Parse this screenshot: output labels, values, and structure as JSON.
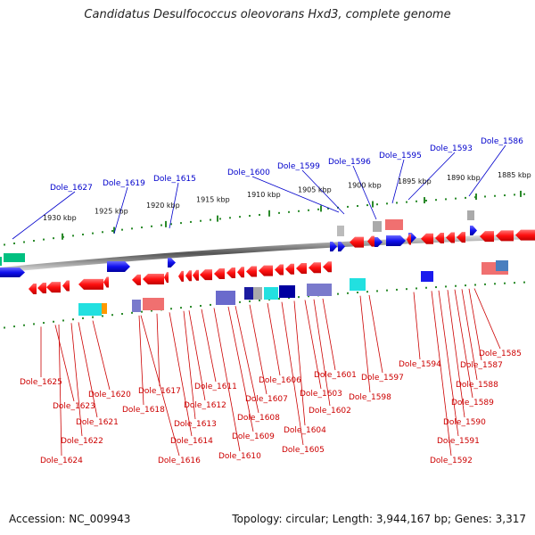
{
  "title": "Candidatus Desulfococcus oleovorans Hxd3, complete genome",
  "footer": {
    "accession": "Accession: NC_009943",
    "summary": "Topology: circular; Length: 3,944,167 bp; Genes: 3,317"
  },
  "colors": {
    "forward_label": "#0000cc",
    "reverse_label": "#cc0000",
    "tick": "#2a8a2a",
    "backbone": "#888888",
    "gene_red": "#ff1a1a",
    "gene_blue": "#1a1aee"
  },
  "scale": {
    "unit": "kbp",
    "ticks": [
      "1930 kbp",
      "1925 kbp",
      "1920 kbp",
      "1915 kbp",
      "1910 kbp",
      "1905 kbp",
      "1900 kbp",
      "1895 kbp",
      "1890 kbp",
      "1885 kbp"
    ]
  },
  "forward_labels": [
    "Dole_1627",
    "Dole_1619",
    "Dole_1615",
    "Dole_1600",
    "Dole_1599",
    "Dole_1596",
    "Dole_1595",
    "Dole_1593",
    "Dole_1586"
  ],
  "reverse_labels": [
    "Dole_1625",
    "Dole_1623",
    "Dole_1622",
    "Dole_1624",
    "Dole_1621",
    "Dole_1620",
    "Dole_1618",
    "Dole_1617",
    "Dole_1616",
    "Dole_1614",
    "Dole_1613",
    "Dole_1612",
    "Dole_1611",
    "Dole_1610",
    "Dole_1609",
    "Dole_1608",
    "Dole_1607",
    "Dole_1606",
    "Dole_1605",
    "Dole_1604",
    "Dole_1603",
    "Dole_1602",
    "Dole_1601",
    "Dole_1598",
    "Dole_1597",
    "Dole_1594",
    "Dole_1592",
    "Dole_1591",
    "Dole_1590",
    "Dole_1589",
    "Dole_1588",
    "Dole_1587",
    "Dole_1585"
  ]
}
